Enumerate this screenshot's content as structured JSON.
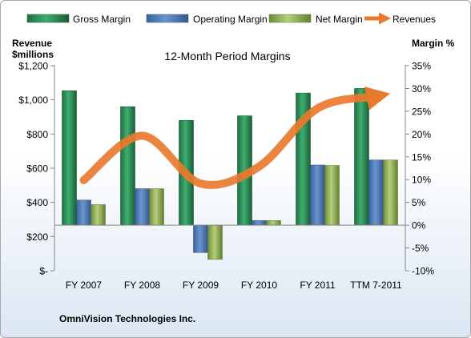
{
  "chart_data": {
    "type": "bar",
    "title": "12-Month Period Margins",
    "categories": [
      "FY 2007",
      "FY 2008",
      "FY 2009",
      "FY 2010",
      "FY 2011",
      "TTM 7-2011"
    ],
    "series": [
      {
        "name": "Gross Margin",
        "axis": "right",
        "type": "bar",
        "color": "#2e8b57",
        "values": [
          29.5,
          26.0,
          23.0,
          24.0,
          29.0,
          30.0
        ]
      },
      {
        "name": "Operating Margin",
        "axis": "right",
        "type": "bar",
        "color": "#4f81bd",
        "values": [
          5.5,
          8.0,
          -6.0,
          1.0,
          13.2,
          14.3
        ]
      },
      {
        "name": "Net Margin",
        "axis": "right",
        "type": "bar",
        "color": "#9bbb59",
        "values": [
          4.5,
          8.0,
          -7.5,
          1.0,
          13.1,
          14.3
        ]
      },
      {
        "name": "Revenues",
        "axis": "left",
        "type": "line",
        "color": "#e87a2e",
        "values": [
          530,
          790,
          510,
          610,
          950,
          1020
        ]
      }
    ],
    "left_axis": {
      "label_line1": "Revenue",
      "label_line2": "$millions",
      "ylim": [
        0,
        1200
      ],
      "ticks": [
        0,
        200,
        400,
        600,
        800,
        1000,
        1200
      ],
      "tick_labels": [
        "$-",
        "$200",
        "$400",
        "$600",
        "$800",
        "$1,000",
        "$1,200"
      ]
    },
    "right_axis": {
      "label": "Margin %",
      "ylim": [
        -10,
        35
      ],
      "ticks": [
        -10,
        -5,
        0,
        5,
        10,
        15,
        20,
        25,
        30,
        35
      ],
      "tick_labels": [
        "-10%",
        "-5%",
        "0%",
        "5%",
        "10%",
        "15%",
        "20%",
        "25%",
        "30%",
        "35%"
      ]
    },
    "legend_position": "top",
    "grid": false,
    "footer": "OmniVision Technologies Inc."
  }
}
